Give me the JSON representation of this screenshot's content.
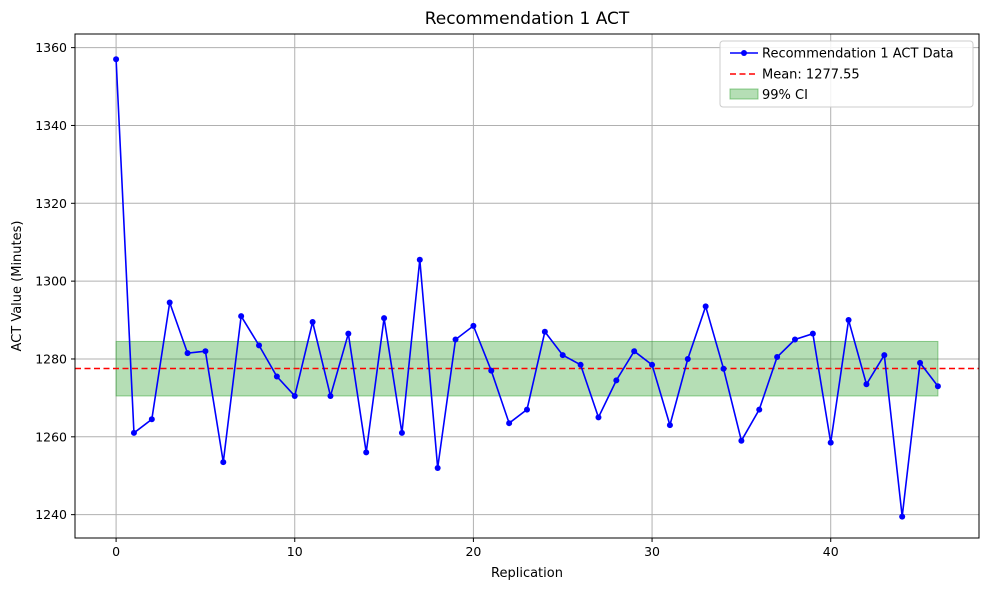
{
  "chart_data": {
    "type": "line",
    "title": "Recommendation 1 ACT",
    "xlabel": "Replication",
    "ylabel": "ACT Value (Minutes)",
    "xlim": [
      -2.3,
      48.3
    ],
    "ylim": [
      1234,
      1363.5
    ],
    "xticks": [
      0,
      10,
      20,
      30,
      40
    ],
    "yticks": [
      1240,
      1260,
      1280,
      1300,
      1320,
      1340,
      1360
    ],
    "grid": true,
    "legend_position": "top-right",
    "series": [
      {
        "name": "Recommendation 1 ACT Data",
        "color": "#0000ff",
        "x": [
          0,
          1,
          2,
          3,
          4,
          5,
          6,
          7,
          8,
          9,
          10,
          11,
          12,
          13,
          14,
          15,
          16,
          17,
          18,
          19,
          20,
          21,
          22,
          23,
          24,
          25,
          26,
          27,
          28,
          29,
          30,
          31,
          32,
          33,
          34,
          35,
          36,
          37,
          38,
          39,
          40,
          41,
          42,
          43,
          44,
          45,
          46
        ],
        "y": [
          1357,
          1261,
          1264.5,
          1294.5,
          1281.5,
          1282,
          1253.5,
          1291,
          1283.5,
          1275.5,
          1270.5,
          1289.5,
          1270.5,
          1286.5,
          1256,
          1290.5,
          1261,
          1305.5,
          1252,
          1285,
          1288.5,
          1277,
          1263.5,
          1267,
          1287,
          1281,
          1278.5,
          1265,
          1274.5,
          1282,
          1278.5,
          1263,
          1280,
          1293.5,
          1277.5,
          1259,
          1267,
          1280.5,
          1285,
          1286.5,
          1258.5,
          1290,
          1273.5,
          1281,
          1239.5,
          1279,
          1273
        ]
      }
    ],
    "mean": {
      "label": "Mean: 1277.55",
      "value": 1277.55,
      "color": "#ff0000"
    },
    "ci": {
      "label": "99% CI",
      "lower": 1270.5,
      "upper": 1284.5,
      "x_start": 0,
      "x_end": 46,
      "color": "#2ca02c"
    }
  }
}
